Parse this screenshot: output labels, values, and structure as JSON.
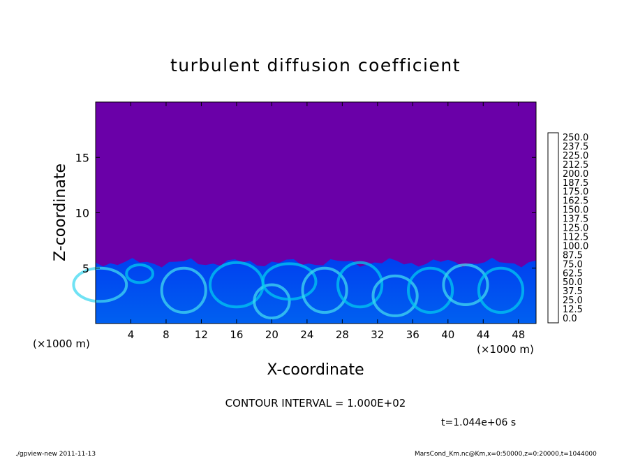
{
  "chart_data": {
    "type": "heatmap",
    "title": "turbulent diffusion coefficient",
    "xlabel": "X-coordinate",
    "ylabel": "Z-coordinate",
    "x_unit_left": "(×1000 m)",
    "x_unit_right": "(×1000 m)",
    "xlim": [
      0,
      50
    ],
    "ylim": [
      0,
      20
    ],
    "xticks": [
      4,
      8,
      12,
      16,
      20,
      24,
      28,
      32,
      36,
      40,
      44,
      48
    ],
    "yticks": [
      5,
      10,
      15
    ],
    "colorbar": {
      "levels": [
        "250.0",
        "237.5",
        "225.0",
        "212.5",
        "200.0",
        "187.5",
        "175.0",
        "162.5",
        "150.0",
        "137.5",
        "125.0",
        "112.5",
        "100.0",
        "87.5",
        "75.0",
        "62.5",
        "50.0",
        "37.5",
        "25.0",
        "12.5",
        "0.0"
      ],
      "colors": [
        "#f08080",
        "#f05050",
        "#f01010",
        "#f04000",
        "#f07000",
        "#f0a000",
        "#f0d000",
        "#e0f000",
        "#b0f000",
        "#70f000",
        "#30e000",
        "#00e030",
        "#00e080",
        "#00e0c0",
        "#00d0f0",
        "#00a0f0",
        "#0070f0",
        "#0040f0",
        "#0010e0",
        "#2000c0",
        "#60009c"
      ]
    },
    "background_color": "#6a00a8",
    "turbulent_layer_top_z": 5.5,
    "contour_interval_text": "CONTOUR INTERVAL = 1.000E+02",
    "time_text": "t=1.044e+06 s"
  },
  "footer": {
    "left": "./gpview-new   2011-11-13",
    "right": "MarsCond_Km.nc@Km,x=0:50000,z=0:20000,t=1044000"
  }
}
